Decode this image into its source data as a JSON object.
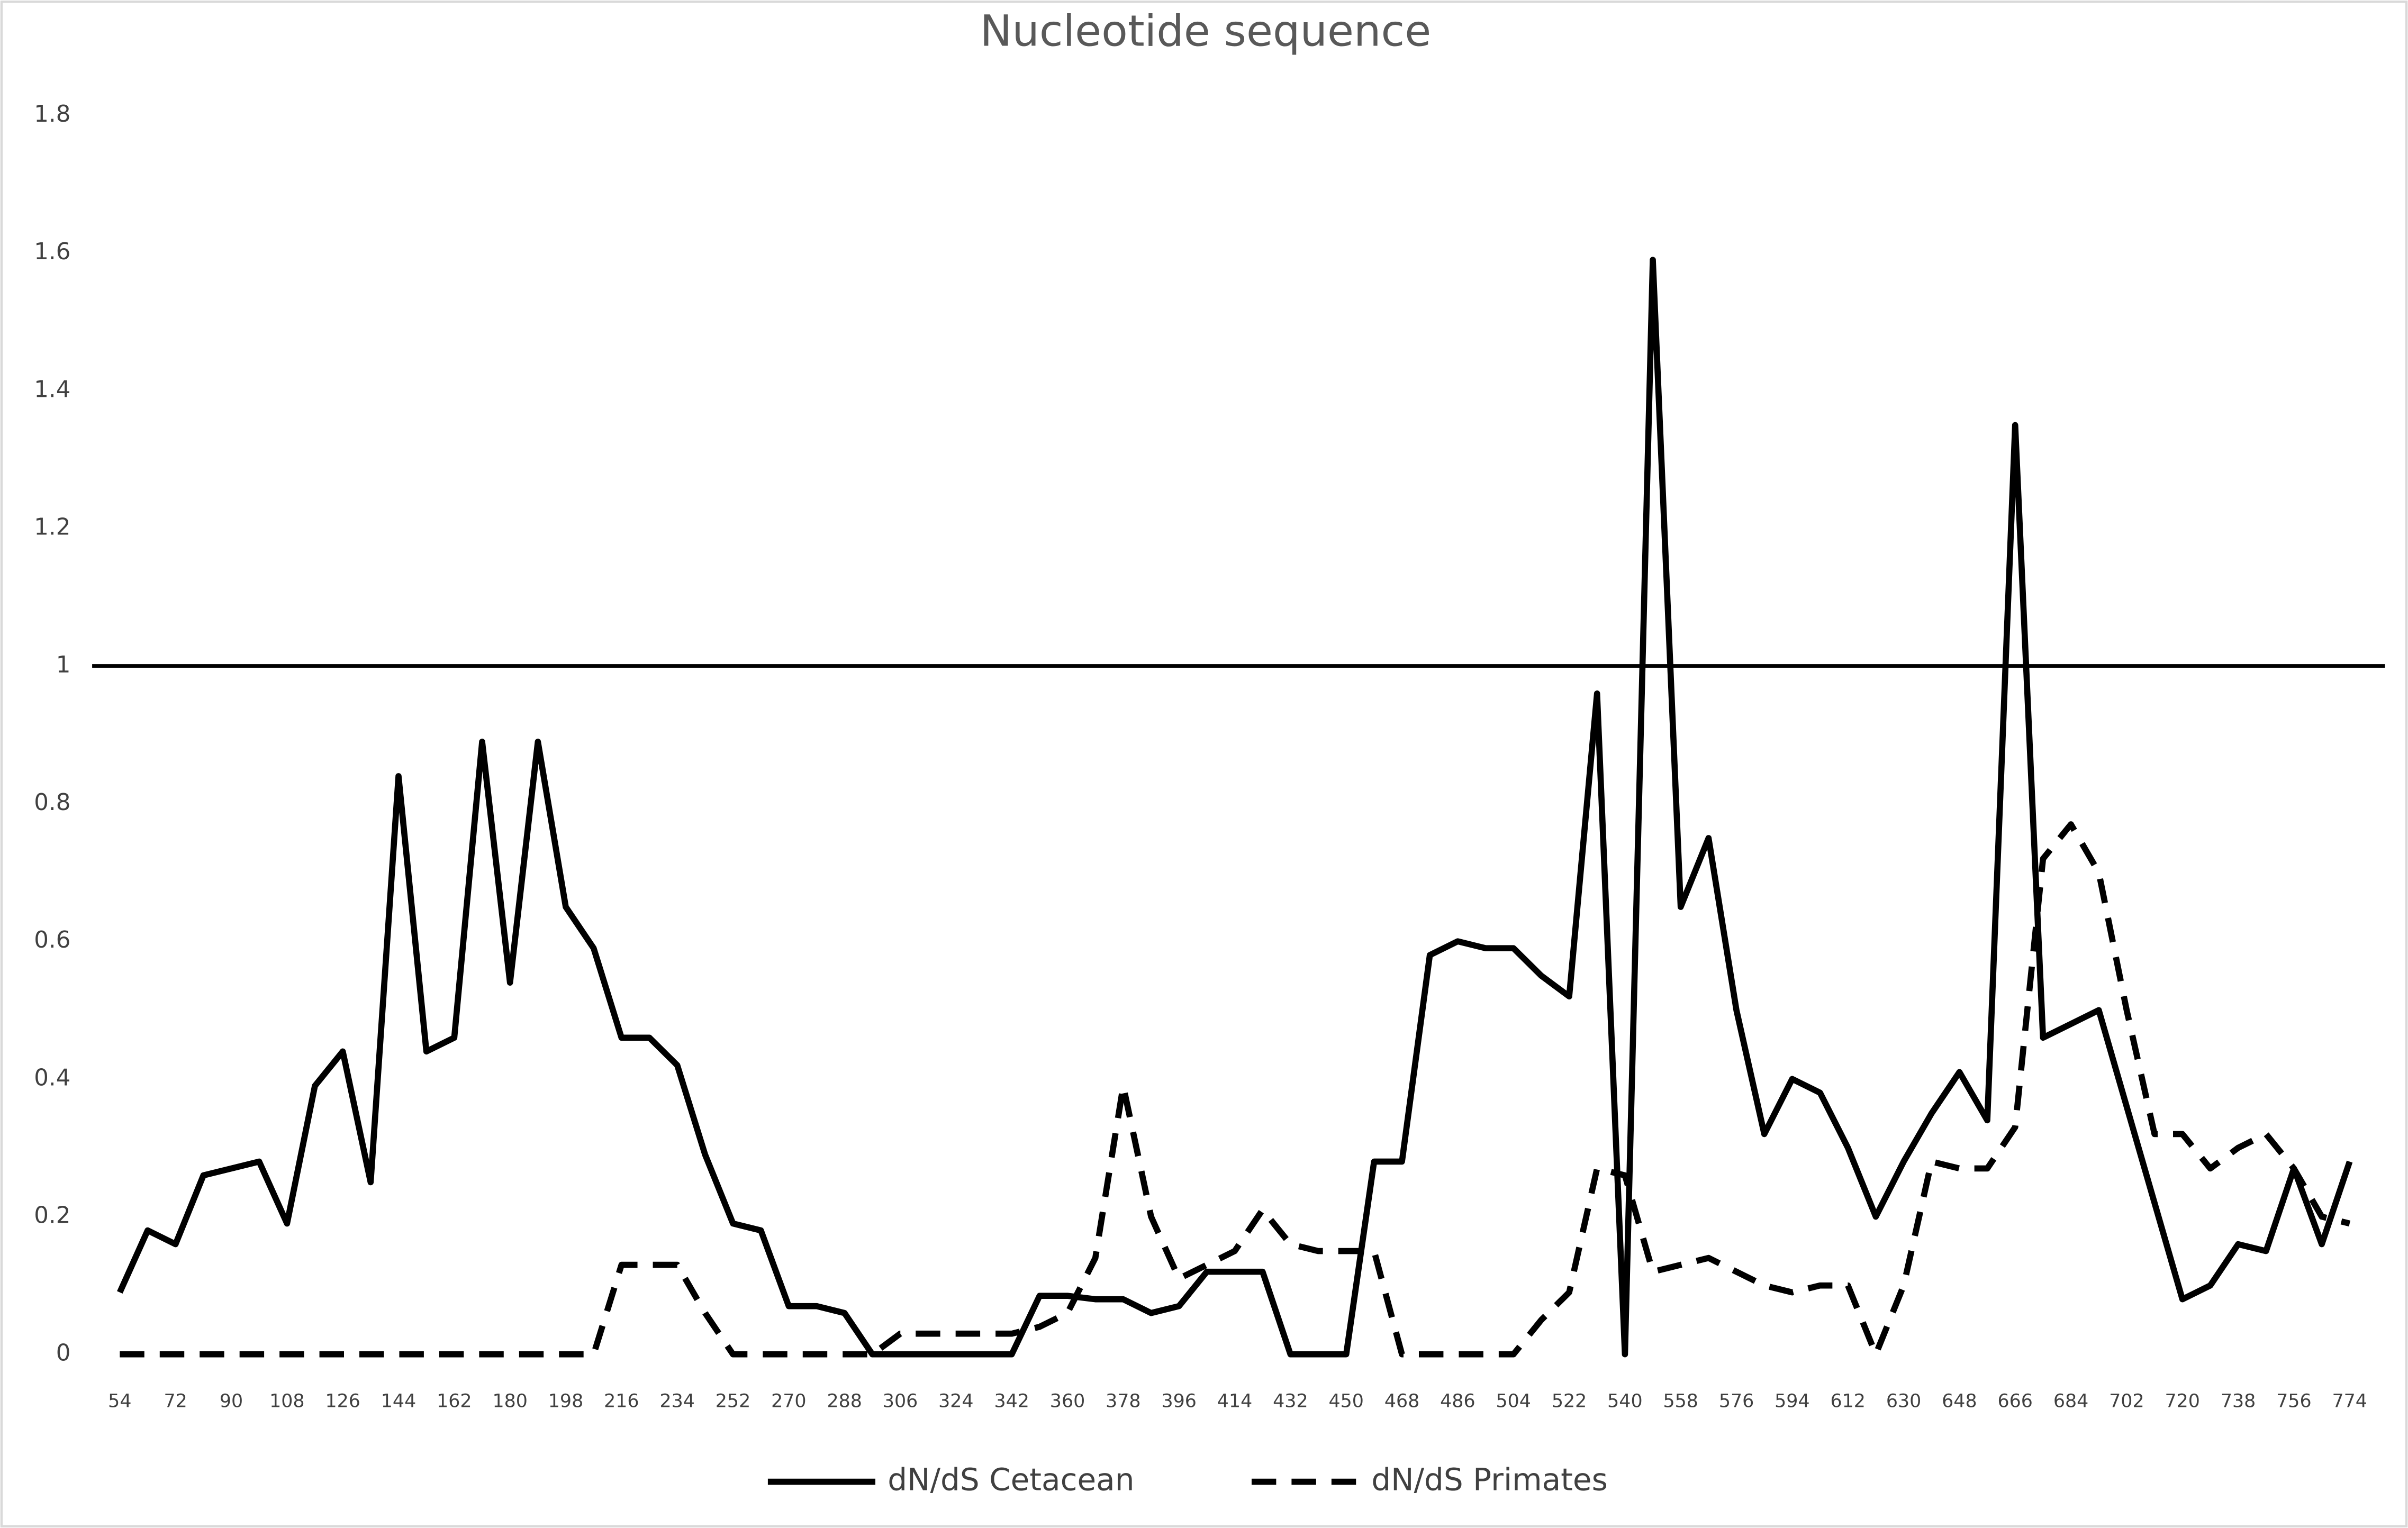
{
  "chart_data": {
    "type": "line",
    "title": "Nucleotide sequence",
    "categories": [
      54,
      null,
      72,
      null,
      90,
      null,
      108,
      null,
      126,
      null,
      144,
      null,
      162,
      null,
      180,
      null,
      198,
      null,
      216,
      null,
      234,
      null,
      252,
      null,
      270,
      null,
      288,
      null,
      306,
      null,
      324,
      null,
      342,
      null,
      360,
      null,
      378,
      null,
      396,
      null,
      414,
      null,
      432,
      null,
      450,
      null,
      468,
      null,
      486,
      null,
      504,
      null,
      522,
      null,
      540,
      null,
      558,
      null,
      576,
      null,
      594,
      null,
      612,
      null,
      630,
      null,
      648,
      null,
      666,
      null,
      684,
      null,
      702,
      null,
      720,
      null,
      738,
      null,
      756,
      null,
      774
    ],
    "series": [
      {
        "name": "dN/dS Cetacean",
        "color": "#000000",
        "dashed": false,
        "values": [
          0.09,
          0.18,
          0.16,
          0.26,
          0.27,
          0.28,
          0.19,
          0.39,
          0.44,
          0.25,
          0.84,
          0.44,
          0.46,
          0.89,
          0.54,
          0.89,
          0.65,
          0.59,
          0.46,
          0.46,
          0.42,
          0.29,
          0.19,
          0.18,
          0.07,
          0.07,
          0.06,
          0,
          0,
          0,
          0,
          0,
          0,
          0.085,
          0.085,
          0.08,
          0.08,
          0.06,
          0.07,
          0.12,
          0.12,
          0.12,
          0,
          0,
          0,
          0.28,
          0.28,
          0.58,
          0.6,
          0.59,
          0.59,
          0.55,
          0.52,
          0.96,
          0,
          1.59,
          0.65,
          0.75,
          0.5,
          0.32,
          0.4,
          0.38,
          0.3,
          0.2,
          0.28,
          0.35,
          0.41,
          0.34,
          1.35,
          0.46,
          0.48,
          0.5,
          0.36,
          0.22,
          0.08,
          0.1,
          0.16,
          0.15,
          0.27,
          0.16,
          0.28
        ]
      },
      {
        "name": "dN/dS Primates",
        "color": "#000000",
        "dashed": true,
        "values": [
          0,
          0,
          0,
          0,
          0,
          0,
          0,
          0,
          0,
          0,
          0,
          0,
          0,
          0,
          0,
          0,
          0,
          0,
          0.13,
          0.13,
          0.13,
          0.06,
          0,
          0,
          0,
          0,
          0,
          0,
          0.03,
          0.03,
          0.03,
          0.03,
          0.03,
          0.04,
          0.06,
          0.14,
          0.39,
          0.2,
          0.11,
          0.13,
          0.15,
          0.21,
          0.16,
          0.15,
          0.15,
          0.15,
          0,
          0,
          0,
          0,
          0,
          0.05,
          0.09,
          0.27,
          0.26,
          0.12,
          0.13,
          0.14,
          0.12,
          0.1,
          0.09,
          0.1,
          0.1,
          0,
          0.1,
          0.28,
          0.27,
          0.27,
          0.33,
          0.72,
          0.77,
          0.7,
          0.5,
          0.32,
          0.32,
          0.27,
          0.3,
          0.32,
          0.27,
          0.2,
          0.19
        ]
      }
    ],
    "ylim": [
      0,
      1.8
    ],
    "yticks": [
      0,
      0.2,
      0.4,
      0.6,
      0.8,
      1,
      1.2,
      1.4,
      1.6,
      1.8
    ],
    "reference_line": 1,
    "grid": false,
    "legend": "bottom"
  }
}
